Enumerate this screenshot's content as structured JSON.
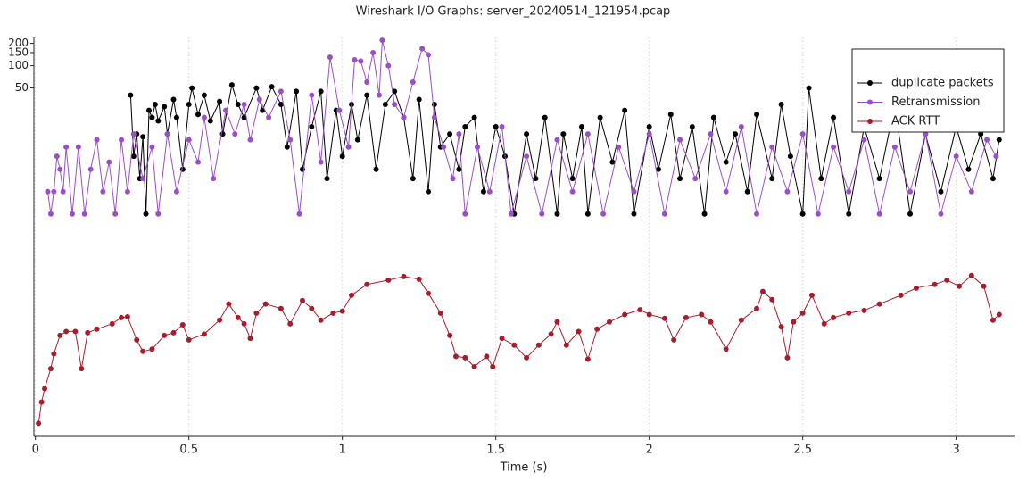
{
  "chart_data": {
    "type": "line",
    "title": "Wireshark I/O Graphs: server_20240514_121954.pcap",
    "x_label": "Time (s)",
    "log_y": true,
    "grid": "x",
    "legend": "top-right",
    "xlim": [
      -0.005,
      3.19
    ],
    "xticks": [
      0,
      0.5,
      1,
      1.5,
      2,
      2.5,
      3
    ],
    "ylim": [
      0.001,
      240
    ],
    "yticks": [
      50,
      100,
      150,
      200
    ],
    "series": [
      {
        "name": "duplicate packets",
        "color": "#000000",
        "x": [
          0.31,
          0.32,
          0.33,
          0.34,
          0.35,
          0.36,
          0.37,
          0.38,
          0.39,
          0.4,
          0.42,
          0.43,
          0.45,
          0.46,
          0.48,
          0.5,
          0.51,
          0.53,
          0.55,
          0.57,
          0.6,
          0.61,
          0.64,
          0.66,
          0.68,
          0.72,
          0.74,
          0.77,
          0.8,
          0.82,
          0.85,
          0.87,
          0.9,
          0.93,
          0.95,
          0.98,
          1.0,
          1.03,
          1.05,
          1.08,
          1.11,
          1.14,
          1.17,
          1.2,
          1.23,
          1.25,
          1.28,
          1.3,
          1.32,
          1.35,
          1.38,
          1.4,
          1.43,
          1.46,
          1.5,
          1.53,
          1.56,
          1.6,
          1.63,
          1.66,
          1.7,
          1.72,
          1.75,
          1.78,
          1.8,
          1.84,
          1.88,
          1.92,
          1.95,
          2.0,
          2.03,
          2.07,
          2.1,
          2.14,
          2.18,
          2.21,
          2.25,
          2.28,
          2.32,
          2.35,
          2.4,
          2.43,
          2.46,
          2.5,
          2.52,
          2.56,
          2.6,
          2.65,
          2.7,
          2.75,
          2.8,
          2.85,
          2.9,
          2.95,
          3.0,
          3.04,
          3.08,
          3.12,
          3.14
        ],
        "values": [
          40,
          6,
          12,
          3,
          11,
          1,
          25,
          20,
          30,
          18,
          28,
          12,
          35,
          20,
          4,
          30,
          50,
          22,
          40,
          18,
          33,
          12,
          55,
          30,
          20,
          50,
          25,
          52,
          30,
          8,
          45,
          4,
          15,
          45,
          3,
          25,
          6,
          30,
          10,
          40,
          4,
          30,
          45,
          20,
          3,
          35,
          2,
          30,
          8,
          12,
          4,
          15,
          20,
          2,
          15,
          6,
          1,
          12,
          3,
          20,
          1,
          12,
          3,
          15,
          1,
          20,
          5,
          25,
          1,
          15,
          4,
          22,
          3,
          15,
          1,
          20,
          5,
          12,
          2,
          22,
          3,
          30,
          6,
          1,
          50,
          3,
          20,
          1,
          15,
          3,
          30,
          1,
          12,
          2,
          15,
          4,
          12,
          3,
          10
        ]
      },
      {
        "name": "Retransmission",
        "color": "#9a4fc4",
        "x": [
          0.04,
          0.05,
          0.06,
          0.07,
          0.08,
          0.09,
          0.1,
          0.12,
          0.14,
          0.16,
          0.18,
          0.2,
          0.22,
          0.24,
          0.26,
          0.28,
          0.3,
          0.32,
          0.35,
          0.38,
          0.4,
          0.43,
          0.46,
          0.5,
          0.53,
          0.55,
          0.58,
          0.62,
          0.65,
          0.68,
          0.7,
          0.73,
          0.76,
          0.8,
          0.83,
          0.86,
          0.9,
          0.93,
          0.96,
          0.99,
          1.02,
          1.04,
          1.06,
          1.08,
          1.1,
          1.12,
          1.13,
          1.15,
          1.17,
          1.2,
          1.23,
          1.26,
          1.28,
          1.3,
          1.33,
          1.36,
          1.38,
          1.4,
          1.44,
          1.48,
          1.52,
          1.55,
          1.6,
          1.65,
          1.7,
          1.75,
          1.8,
          1.85,
          1.9,
          1.95,
          2.0,
          2.05,
          2.1,
          2.15,
          2.2,
          2.25,
          2.3,
          2.35,
          2.4,
          2.45,
          2.5,
          2.55,
          2.6,
          2.65,
          2.7,
          2.75,
          2.8,
          2.85,
          2.9,
          2.95,
          3.0,
          3.05,
          3.1,
          3.13
        ],
        "values": [
          2,
          1,
          2,
          6,
          4,
          2,
          8,
          1,
          8,
          1,
          4,
          10,
          2,
          5,
          1,
          10,
          2,
          12,
          3,
          8,
          1,
          12,
          2,
          10,
          5,
          20,
          3,
          25,
          12,
          30,
          10,
          35,
          20,
          45,
          10,
          1,
          40,
          5,
          130,
          25,
          8,
          120,
          115,
          60,
          150,
          40,
          220,
          100,
          30,
          20,
          60,
          170,
          140,
          20,
          8,
          3,
          12,
          1,
          8,
          2,
          15,
          1,
          6,
          1,
          10,
          2,
          12,
          1,
          8,
          2,
          12,
          1,
          10,
          3,
          12,
          2,
          15,
          1,
          8,
          2,
          12,
          1,
          8,
          2,
          10,
          1,
          8,
          2,
          12,
          1,
          6,
          2,
          10,
          6
        ]
      },
      {
        "name": "ACK RTT",
        "color": "#a51e2d",
        "x": [
          0.01,
          0.02,
          0.03,
          0.05,
          0.06,
          0.08,
          0.1,
          0.13,
          0.15,
          0.17,
          0.2,
          0.25,
          0.28,
          0.3,
          0.33,
          0.35,
          0.38,
          0.42,
          0.45,
          0.48,
          0.5,
          0.55,
          0.6,
          0.63,
          0.66,
          0.68,
          0.7,
          0.72,
          0.75,
          0.8,
          0.83,
          0.87,
          0.9,
          0.93,
          0.97,
          1.0,
          1.03,
          1.08,
          1.15,
          1.2,
          1.25,
          1.28,
          1.32,
          1.35,
          1.37,
          1.4,
          1.43,
          1.47,
          1.49,
          1.52,
          1.56,
          1.6,
          1.64,
          1.68,
          1.7,
          1.73,
          1.77,
          1.8,
          1.83,
          1.87,
          1.92,
          1.97,
          2.0,
          2.05,
          2.08,
          2.12,
          2.17,
          2.2,
          2.25,
          2.3,
          2.35,
          2.37,
          2.4,
          2.43,
          2.45,
          2.47,
          2.5,
          2.53,
          2.57,
          2.6,
          2.65,
          2.7,
          2.75,
          2.82,
          2.87,
          2.93,
          2.97,
          3.01,
          3.05,
          3.09,
          3.12,
          3.14
        ],
        "values": [
          0.0015,
          0.0029,
          0.0044,
          0.0082,
          0.013,
          0.023,
          0.026,
          0.026,
          0.0082,
          0.025,
          0.028,
          0.033,
          0.04,
          0.041,
          0.02,
          0.014,
          0.015,
          0.023,
          0.025,
          0.032,
          0.02,
          0.024,
          0.037,
          0.061,
          0.04,
          0.033,
          0.021,
          0.046,
          0.061,
          0.053,
          0.033,
          0.068,
          0.053,
          0.037,
          0.046,
          0.049,
          0.08,
          0.112,
          0.128,
          0.143,
          0.132,
          0.085,
          0.046,
          0.023,
          0.012,
          0.0115,
          0.0087,
          0.012,
          0.0087,
          0.021,
          0.017,
          0.0115,
          0.017,
          0.024,
          0.035,
          0.017,
          0.026,
          0.011,
          0.028,
          0.035,
          0.044,
          0.051,
          0.044,
          0.039,
          0.02,
          0.04,
          0.044,
          0.035,
          0.015,
          0.037,
          0.053,
          0.09,
          0.07,
          0.03,
          0.0115,
          0.035,
          0.046,
          0.08,
          0.033,
          0.04,
          0.046,
          0.05,
          0.061,
          0.08,
          0.1,
          0.112,
          0.128,
          0.106,
          0.148,
          0.106,
          0.037,
          0.044
        ]
      }
    ]
  }
}
